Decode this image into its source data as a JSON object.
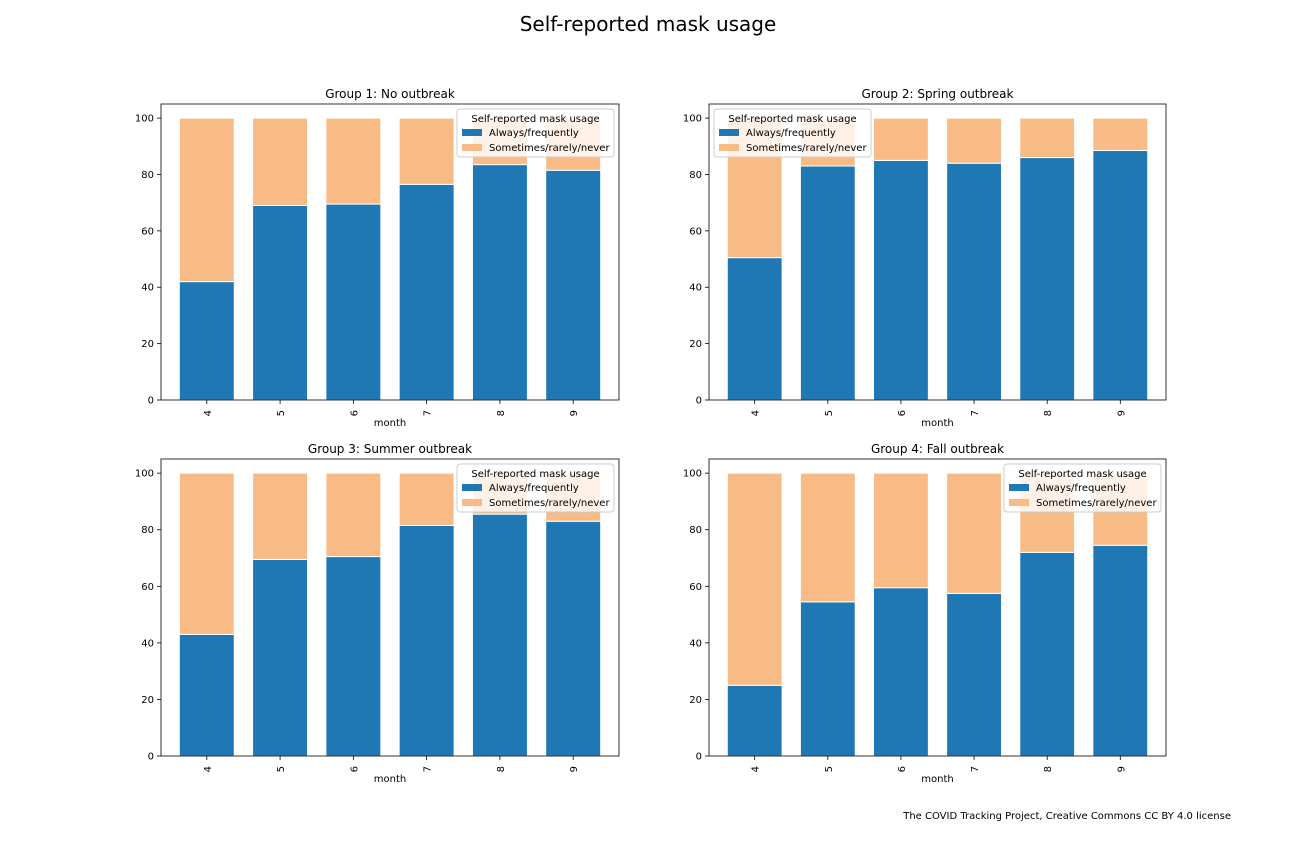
{
  "figure": {
    "title": "Self-reported mask usage",
    "footnote": "The COVID Tracking Project, Creative Commons CC BY 4.0 license"
  },
  "colors": {
    "always": "#1f77b4",
    "sometimes": "#f9bb85"
  },
  "chart_data": [
    {
      "type": "bar",
      "stacked": true,
      "title": "Group 1: No outbreak",
      "xlabel": "month",
      "ylabel": "",
      "categories": [
        "4",
        "5",
        "6",
        "7",
        "8",
        "9"
      ],
      "ylim": [
        0,
        105
      ],
      "yticks": [
        0,
        20,
        40,
        60,
        80,
        100
      ],
      "legend": {
        "title": "Self-reported mask usage",
        "position": "top-right"
      },
      "series": [
        {
          "name": "Always/frequently",
          "values": [
            42,
            69,
            69.5,
            76.5,
            83.5,
            81.5
          ]
        },
        {
          "name": "Sometimes/rarely/never",
          "values": [
            58,
            31,
            30.5,
            23.5,
            16.5,
            18.5
          ]
        }
      ]
    },
    {
      "type": "bar",
      "stacked": true,
      "title": "Group 2: Spring outbreak",
      "xlabel": "month",
      "ylabel": "",
      "categories": [
        "4",
        "5",
        "6",
        "7",
        "8",
        "9"
      ],
      "ylim": [
        0,
        105
      ],
      "yticks": [
        0,
        20,
        40,
        60,
        80,
        100
      ],
      "legend": {
        "title": "Self-reported mask usage",
        "position": "top-left"
      },
      "series": [
        {
          "name": "Always/frequently",
          "values": [
            50.5,
            83,
            85,
            84,
            86,
            88.5
          ]
        },
        {
          "name": "Sometimes/rarely/never",
          "values": [
            49.5,
            17,
            15,
            16,
            14,
            11.5
          ]
        }
      ]
    },
    {
      "type": "bar",
      "stacked": true,
      "title": "Group 3: Summer outbreak",
      "xlabel": "month",
      "ylabel": "",
      "categories": [
        "4",
        "5",
        "6",
        "7",
        "8",
        "9"
      ],
      "ylim": [
        0,
        105
      ],
      "yticks": [
        0,
        20,
        40,
        60,
        80,
        100
      ],
      "legend": {
        "title": "Self-reported mask usage",
        "position": "top-right"
      },
      "series": [
        {
          "name": "Always/frequently",
          "values": [
            43,
            69.5,
            70.5,
            81.5,
            85.5,
            83
          ]
        },
        {
          "name": "Sometimes/rarely/never",
          "values": [
            57,
            30.5,
            29.5,
            18.5,
            14.5,
            17
          ]
        }
      ]
    },
    {
      "type": "bar",
      "stacked": true,
      "title": "Group 4: Fall outbreak",
      "xlabel": "month",
      "ylabel": "",
      "categories": [
        "4",
        "5",
        "6",
        "7",
        "8",
        "9"
      ],
      "ylim": [
        0,
        105
      ],
      "yticks": [
        0,
        20,
        40,
        60,
        80,
        100
      ],
      "legend": {
        "title": "Self-reported mask usage",
        "position": "top-right"
      },
      "series": [
        {
          "name": "Always/frequently",
          "values": [
            25,
            54.5,
            59.5,
            57.5,
            72,
            74.5
          ]
        },
        {
          "name": "Sometimes/rarely/never",
          "values": [
            75,
            45.5,
            40.5,
            42.5,
            28,
            25.5
          ]
        }
      ]
    }
  ]
}
